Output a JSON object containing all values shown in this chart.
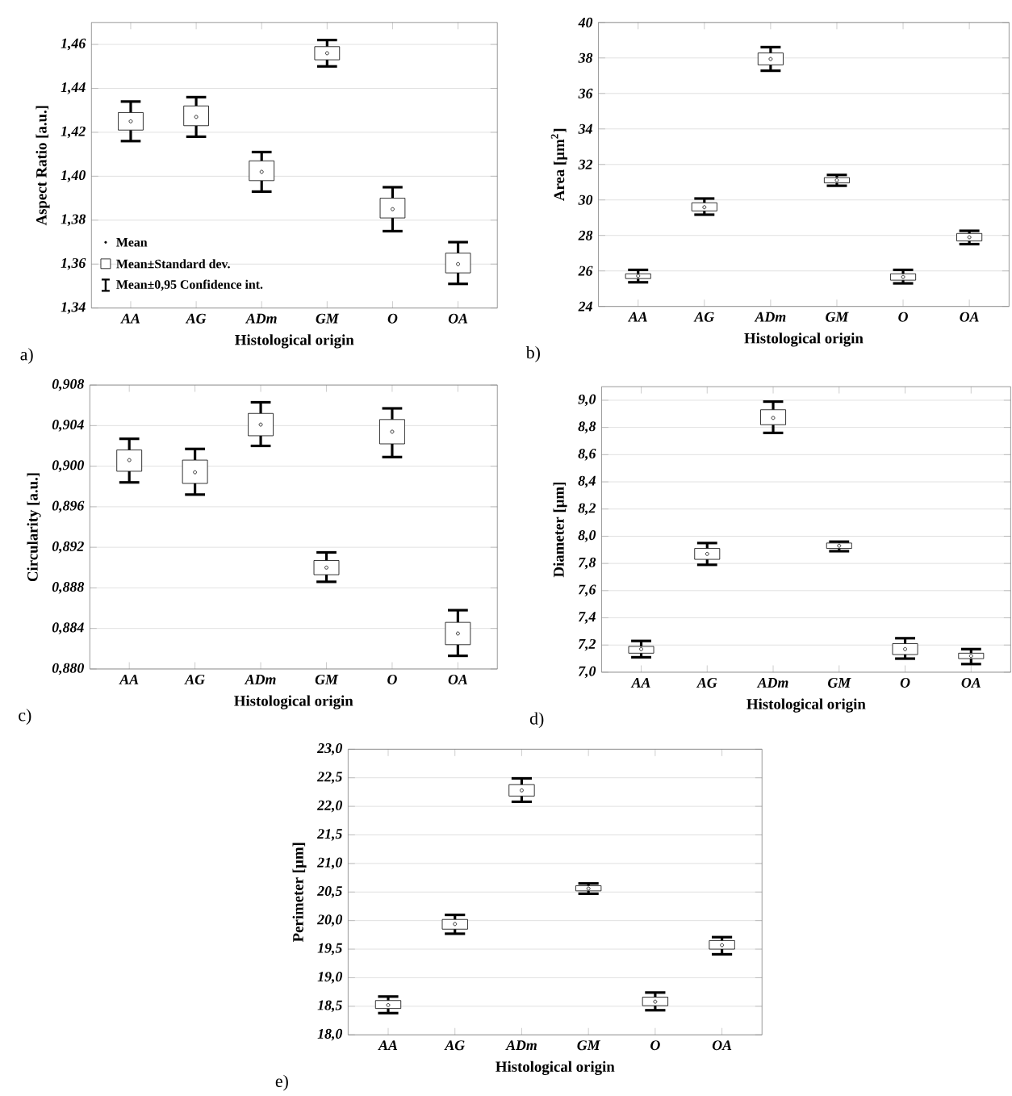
{
  "chart_data": [
    {
      "type": "box",
      "categories": [
        "AA",
        "AG",
        "ADm",
        "GM",
        "O",
        "OA"
      ],
      "xlabel": "Histological origin",
      "ylabel": "Aspect Ratio [a.u.]",
      "ylim": [
        1.34,
        1.47
      ],
      "yticks": [
        {
          "value": 1.34,
          "label": "1,34"
        },
        {
          "value": 1.36,
          "label": "1,36"
        },
        {
          "value": 1.38,
          "label": "1,38"
        },
        {
          "value": 1.4,
          "label": "1,40"
        },
        {
          "value": 1.42,
          "label": "1,42"
        },
        {
          "value": 1.44,
          "label": "1,44"
        },
        {
          "value": 1.46,
          "label": "1,46"
        }
      ],
      "grid": "y",
      "boxes": [
        {
          "low": 1.416,
          "q1": 1.421,
          "mean": 1.425,
          "q3": 1.429,
          "high": 1.434
        },
        {
          "low": 1.418,
          "q1": 1.423,
          "mean": 1.427,
          "q3": 1.432,
          "high": 1.436
        },
        {
          "low": 1.393,
          "q1": 1.398,
          "mean": 1.402,
          "q3": 1.407,
          "high": 1.411
        },
        {
          "low": 1.45,
          "q1": 1.453,
          "mean": 1.456,
          "q3": 1.459,
          "high": 1.462
        },
        {
          "low": 1.375,
          "q1": 1.381,
          "mean": 1.385,
          "q3": 1.39,
          "high": 1.395
        },
        {
          "low": 1.351,
          "q1": 1.356,
          "mean": 1.36,
          "q3": 1.365,
          "high": 1.37
        }
      ],
      "annotations": [
        "a)",
        "Mean",
        "Mean±Standard dev.",
        "Mean±0,95 Confidence int."
      ]
    },
    {
      "type": "box",
      "categories": [
        "AA",
        "AG",
        "ADm",
        "GM",
        "O",
        "OA"
      ],
      "xlabel": "Histological origin",
      "ylabel": "Area [µm$^{2}$]",
      "ylim": [
        24,
        40
      ],
      "yticks": [
        24,
        26,
        28,
        30,
        32,
        34,
        36,
        38,
        40
      ],
      "grid": "y",
      "boxes": [
        {
          "low": 25.36,
          "q1": 25.57,
          "mean": 25.72,
          "q3": 25.84,
          "high": 26.06
        },
        {
          "low": 29.17,
          "q1": 29.38,
          "mean": 29.59,
          "q3": 29.84,
          "high": 30.08
        },
        {
          "low": 37.28,
          "q1": 37.61,
          "mean": 37.94,
          "q3": 38.28,
          "high": 38.61
        },
        {
          "low": 30.8,
          "q1": 30.96,
          "mean": 31.11,
          "q3": 31.26,
          "high": 31.41
        },
        {
          "low": 25.3,
          "q1": 25.48,
          "mean": 25.66,
          "q3": 25.84,
          "high": 26.06
        },
        {
          "low": 27.51,
          "q1": 27.69,
          "mean": 27.9,
          "q3": 28.11,
          "high": 28.26
        }
      ],
      "annotations": [
        "b)"
      ]
    },
    {
      "type": "box",
      "categories": [
        "AA",
        "AG",
        "ADm",
        "GM",
        "O",
        "OA"
      ],
      "xlabel": "Histological origin",
      "ylabel": "Circularity [a.u.]",
      "ylim": [
        0.88,
        0.908
      ],
      "yticks": [
        {
          "value": 0.88,
          "label": "0,880"
        },
        {
          "value": 0.884,
          "label": "0,884"
        },
        {
          "value": 0.888,
          "label": "0,888"
        },
        {
          "value": 0.892,
          "label": "0,892"
        },
        {
          "value": 0.896,
          "label": "0,896"
        },
        {
          "value": 0.9,
          "label": "0,900"
        },
        {
          "value": 0.904,
          "label": "0,904"
        },
        {
          "value": 0.908,
          "label": "0,908"
        }
      ],
      "grid": "y",
      "boxes": [
        {
          "low": 0.8984,
          "q1": 0.8995,
          "mean": 0.9006,
          "q3": 0.9016,
          "high": 0.9027
        },
        {
          "low": 0.8972,
          "q1": 0.8983,
          "mean": 0.8994,
          "q3": 0.9006,
          "high": 0.9017
        },
        {
          "low": 0.902,
          "q1": 0.903,
          "mean": 0.9041,
          "q3": 0.9052,
          "high": 0.9063
        },
        {
          "low": 0.8886,
          "q1": 0.8893,
          "mean": 0.89,
          "q3": 0.8907,
          "high": 0.8915
        },
        {
          "low": 0.9009,
          "q1": 0.9022,
          "mean": 0.9034,
          "q3": 0.9046,
          "high": 0.9057
        },
        {
          "low": 0.8813,
          "q1": 0.8824,
          "mean": 0.8835,
          "q3": 0.8846,
          "high": 0.8858
        }
      ],
      "annotations": [
        "c)"
      ]
    },
    {
      "type": "box",
      "categories": [
        "AA",
        "AG",
        "ADm",
        "GM",
        "O",
        "OA"
      ],
      "xlabel": "Histological origin",
      "ylabel": "Diameter [µm]",
      "ylim": [
        7.0,
        9.1
      ],
      "yticks": [
        {
          "value": 7.0,
          "label": "7,0"
        },
        {
          "value": 7.2,
          "label": "7,2"
        },
        {
          "value": 7.4,
          "label": "7,4"
        },
        {
          "value": 7.6,
          "label": "7,6"
        },
        {
          "value": 7.8,
          "label": "7,8"
        },
        {
          "value": 8.0,
          "label": "8,0"
        },
        {
          "value": 8.2,
          "label": "8,2"
        },
        {
          "value": 8.4,
          "label": "8,4"
        },
        {
          "value": 8.6,
          "label": "8,6"
        },
        {
          "value": 8.8,
          "label": "8,8"
        },
        {
          "value": 9.0,
          "label": "9,0"
        }
      ],
      "grid": "y",
      "boxes": [
        {
          "low": 7.11,
          "q1": 7.14,
          "mean": 7.17,
          "q3": 7.19,
          "high": 7.23
        },
        {
          "low": 7.79,
          "q1": 7.83,
          "mean": 7.87,
          "q3": 7.91,
          "high": 7.95
        },
        {
          "low": 8.76,
          "q1": 8.82,
          "mean": 8.87,
          "q3": 8.93,
          "high": 8.99
        },
        {
          "low": 7.89,
          "q1": 7.91,
          "mean": 7.93,
          "q3": 7.95,
          "high": 7.96
        },
        {
          "low": 7.1,
          "q1": 7.13,
          "mean": 7.17,
          "q3": 7.21,
          "high": 7.25
        },
        {
          "low": 7.06,
          "q1": 7.1,
          "mean": 7.12,
          "q3": 7.14,
          "high": 7.17
        }
      ],
      "annotations": [
        "d)"
      ]
    },
    {
      "type": "box",
      "categories": [
        "AA",
        "AG",
        "ADm",
        "GM",
        "O",
        "OA"
      ],
      "xlabel": "Histological origin",
      "ylabel": "Perimeter [µm]",
      "ylim": [
        18.0,
        23.0
      ],
      "yticks": [
        {
          "value": 18.0,
          "label": "18,0"
        },
        {
          "value": 18.5,
          "label": "18,5"
        },
        {
          "value": 19.0,
          "label": "19,0"
        },
        {
          "value": 19.5,
          "label": "19,5"
        },
        {
          "value": 20.0,
          "label": "20,0"
        },
        {
          "value": 20.5,
          "label": "20,5"
        },
        {
          "value": 21.0,
          "label": "21,0"
        },
        {
          "value": 21.5,
          "label": "21,5"
        },
        {
          "value": 22.0,
          "label": "22,0"
        },
        {
          "value": 22.5,
          "label": "22,5"
        },
        {
          "value": 23.0,
          "label": "23,0"
        }
      ],
      "grid": "y",
      "boxes": [
        {
          "low": 18.38,
          "q1": 18.46,
          "mean": 18.52,
          "q3": 18.6,
          "high": 18.67
        },
        {
          "low": 19.77,
          "q1": 19.85,
          "mean": 19.94,
          "q3": 20.02,
          "high": 20.1
        },
        {
          "low": 22.08,
          "q1": 22.18,
          "mean": 22.28,
          "q3": 22.38,
          "high": 22.49
        },
        {
          "low": 20.47,
          "q1": 20.52,
          "mean": 20.56,
          "q3": 20.61,
          "high": 20.65
        },
        {
          "low": 18.43,
          "q1": 18.51,
          "mean": 18.58,
          "q3": 18.66,
          "high": 18.74
        },
        {
          "low": 19.41,
          "q1": 19.5,
          "mean": 19.57,
          "q3": 19.65,
          "high": 19.71
        }
      ],
      "annotations": [
        "e)"
      ]
    }
  ]
}
